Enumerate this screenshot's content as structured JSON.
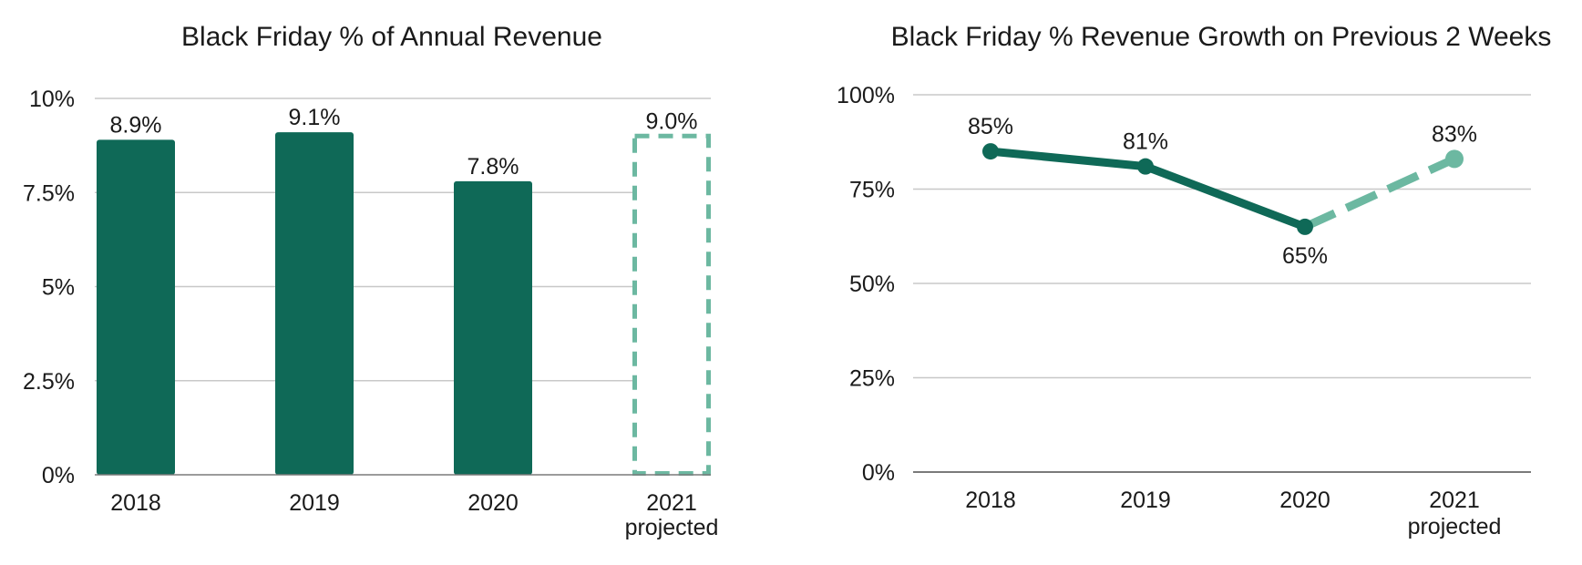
{
  "colors": {
    "actual": "#0f6957",
    "projected": "#6cb8a1",
    "grid": "#c8c8c8",
    "baseline": "#7a7a7a"
  },
  "chart_data": [
    {
      "type": "bar",
      "title": "Black Friday % of Annual Revenue",
      "categories": [
        "2018",
        "2019",
        "2020",
        "2021"
      ],
      "category_sublabels": [
        "",
        "",
        "",
        "projected"
      ],
      "values": [
        8.9,
        9.1,
        7.8,
        9.0
      ],
      "value_labels": [
        "8.9%",
        "9.1%",
        "7.8%",
        "9.0%"
      ],
      "projected": [
        false,
        false,
        false,
        true
      ],
      "ylim": [
        0,
        10
      ],
      "yticks": [
        0,
        2.5,
        5,
        7.5,
        10
      ],
      "ytick_labels": [
        "0%",
        "2.5%",
        "5%",
        "7.5%",
        "10%"
      ],
      "grid": true,
      "xlabel": "",
      "ylabel": ""
    },
    {
      "type": "line",
      "title": "Black Friday % Revenue Growth on Previous 2 Weeks",
      "categories": [
        "2018",
        "2019",
        "2020",
        "2021"
      ],
      "category_sublabels": [
        "",
        "",
        "",
        "projected"
      ],
      "values": [
        85,
        81,
        65,
        83
      ],
      "value_labels": [
        "85%",
        "81%",
        "65%",
        "83%"
      ],
      "projected": [
        false,
        false,
        false,
        true
      ],
      "ylim": [
        0,
        100
      ],
      "yticks": [
        0,
        25,
        50,
        75,
        100
      ],
      "ytick_labels": [
        "0%",
        "25%",
        "50%",
        "75%",
        "100%"
      ],
      "grid": true,
      "xlabel": "",
      "ylabel": ""
    }
  ]
}
